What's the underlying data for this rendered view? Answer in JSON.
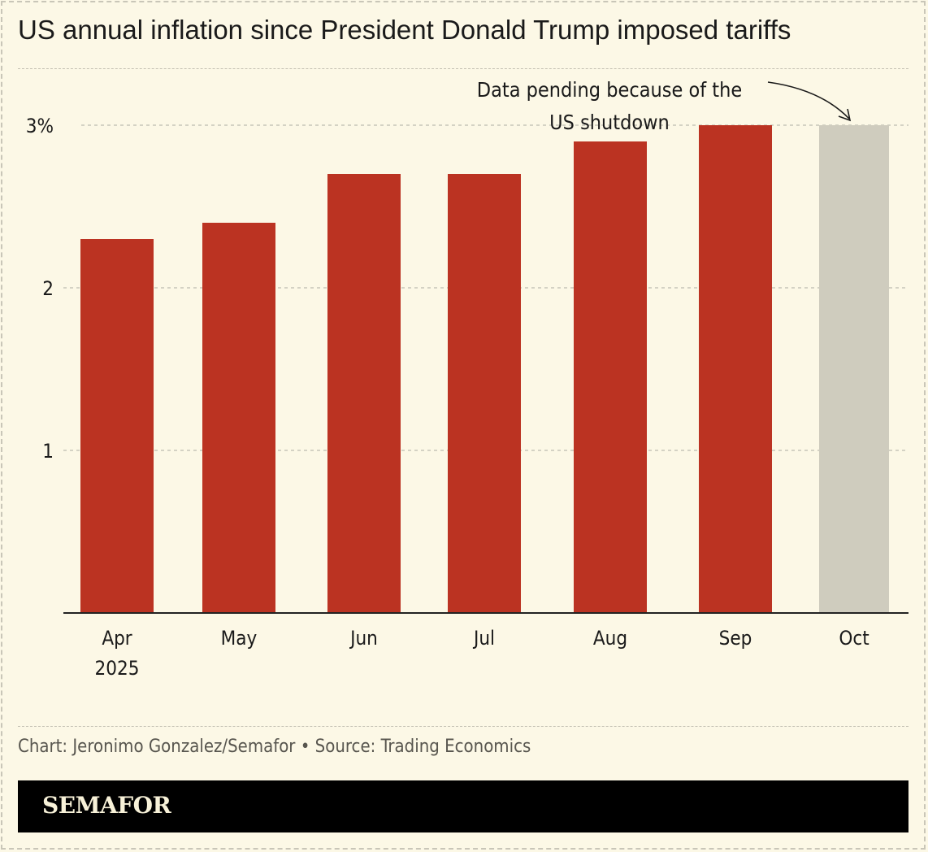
{
  "chart_data": {
    "type": "bar",
    "title": "US annual inflation since President Donald Trump imposed tariffs",
    "categories": [
      "Apr\n2025",
      "May",
      "Jun",
      "Jul",
      "Aug",
      "Sep",
      "Oct"
    ],
    "values": [
      2.3,
      2.4,
      2.7,
      2.7,
      2.9,
      3.0,
      3.0
    ],
    "pending": [
      false,
      false,
      false,
      false,
      false,
      false,
      true
    ],
    "ylim": [
      0,
      3
    ],
    "yticks": [
      {
        "value": 1,
        "label": "1"
      },
      {
        "value": 2,
        "label": "2"
      },
      {
        "value": 3,
        "label": "3%"
      }
    ],
    "grid": true,
    "annotation": {
      "lines": [
        "Data pending because of the",
        "US shutdown"
      ],
      "target": "Oct"
    },
    "colors": {
      "bar": "#bb3322",
      "pending": "#cfccbe",
      "background": "#fcf8e6"
    }
  },
  "footer": {
    "credit": "Chart: Jeronimo Gonzalez/Semafor • Source: Trading Economics",
    "brand": "SEMAFOR"
  }
}
